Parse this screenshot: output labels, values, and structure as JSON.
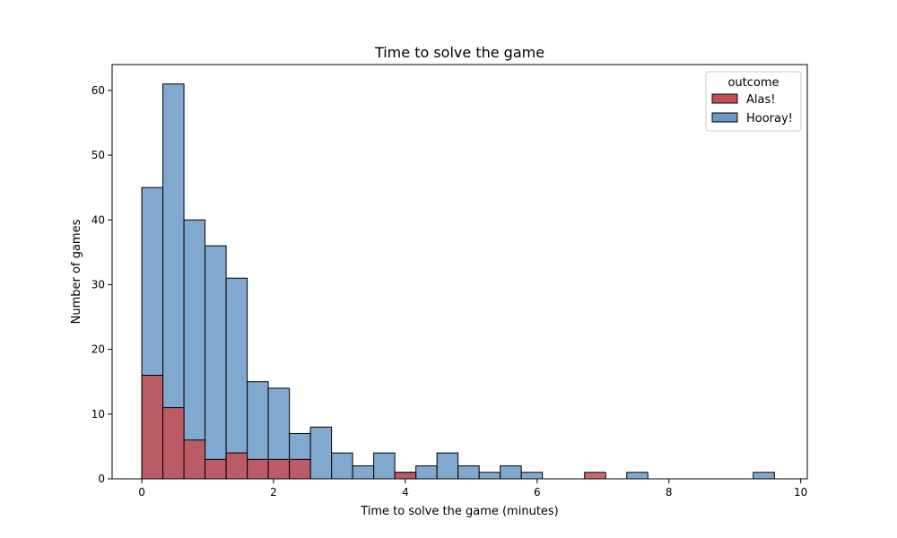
{
  "chart_data": {
    "type": "bar",
    "title": "Time to solve the game",
    "xlabel": "Time to solve the game (minutes)",
    "ylabel": "Number of games",
    "xlim": [
      -0.45,
      10.1
    ],
    "ylim": [
      0,
      64
    ],
    "xticks": [
      "0",
      "2",
      "4",
      "6",
      "8",
      "10"
    ],
    "yticks": [
      "0",
      "10",
      "20",
      "30",
      "40",
      "50",
      "60"
    ],
    "grid": false,
    "bin_edges": [
      0.0,
      0.32,
      0.64,
      0.96,
      1.28,
      1.6,
      1.92,
      2.24,
      2.56,
      2.88,
      3.2,
      3.52,
      3.84,
      4.16,
      4.48,
      4.8,
      5.12,
      5.44,
      5.76,
      6.08,
      6.4,
      6.72,
      7.04,
      7.36,
      7.68,
      8.0,
      8.32,
      8.64,
      8.96,
      9.28,
      9.6
    ],
    "legend": {
      "title": "outcome",
      "position": "top-right"
    },
    "series": [
      {
        "name": "Alas!",
        "color": "#c44e52",
        "values": [
          16,
          11,
          6,
          3,
          4,
          3,
          3,
          3,
          0,
          0,
          0,
          0,
          1,
          0,
          0,
          0,
          0,
          0,
          0,
          0,
          0,
          1,
          0,
          0,
          0,
          0,
          0,
          0,
          0,
          0
        ]
      },
      {
        "name": "Hooray!",
        "color": "#6b9ac8",
        "values": [
          45,
          61,
          40,
          36,
          31,
          15,
          14,
          7,
          8,
          4,
          2,
          4,
          1,
          2,
          4,
          2,
          1,
          2,
          1,
          0,
          0,
          0,
          0,
          1,
          0,
          0,
          0,
          0,
          0,
          1
        ]
      }
    ]
  }
}
